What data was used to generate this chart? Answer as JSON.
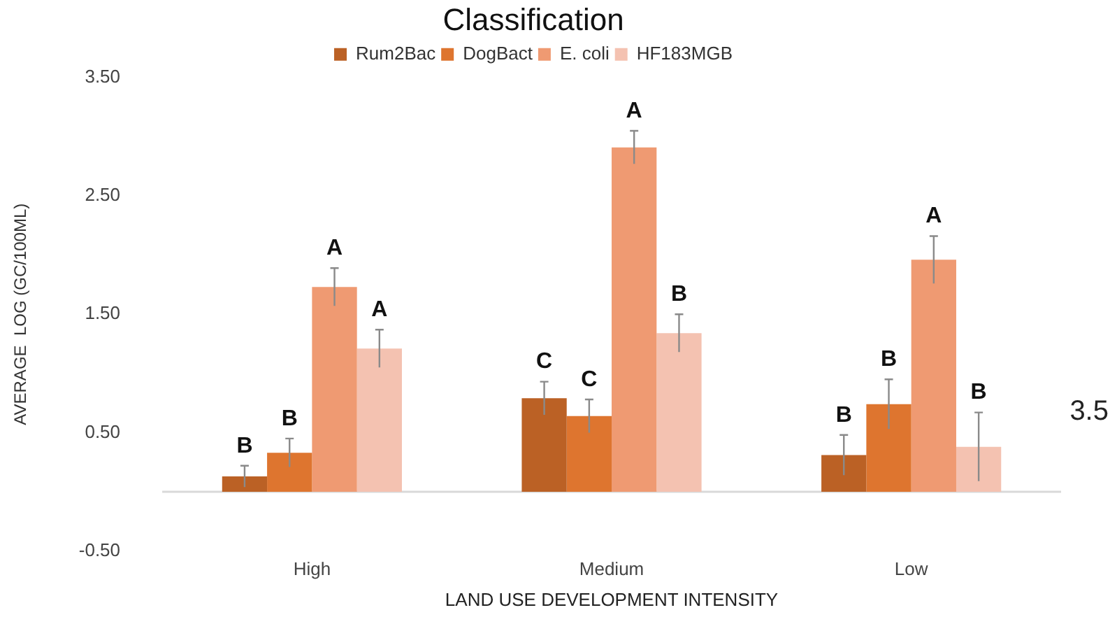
{
  "chart_data": {
    "type": "bar",
    "title": "Classification",
    "xlabel": "LAND USE DEVELOPMENT INTENSITY",
    "ylabel": "AVERAGE  LOG (GC/100ML)",
    "categories": [
      "High",
      "Medium",
      "Low"
    ],
    "series": [
      {
        "name": "Rum2Bac",
        "color": "#bb6125",
        "values": [
          0.13,
          0.79,
          0.31
        ],
        "errors": [
          0.09,
          0.14,
          0.17
        ],
        "value_labels": [
          "B",
          "C",
          "B"
        ]
      },
      {
        "name": "DogBact",
        "color": "#de752f",
        "values": [
          0.33,
          0.64,
          0.74
        ],
        "errors": [
          0.12,
          0.14,
          0.21
        ],
        "value_labels": [
          "B",
          "C",
          "B"
        ]
      },
      {
        "name": "E. coli",
        "color": "#ef9a72",
        "values": [
          1.73,
          2.91,
          1.96
        ],
        "errors": [
          0.16,
          0.14,
          0.2
        ],
        "value_labels": [
          "A",
          "A",
          "A"
        ]
      },
      {
        "name": "HF183MGB",
        "color": "#f4c2b1",
        "values": [
          1.21,
          1.34,
          0.38
        ],
        "errors": [
          0.16,
          0.16,
          0.29
        ],
        "value_labels": [
          "A",
          "B",
          "B"
        ]
      }
    ],
    "ylim": [
      -0.5,
      3.5
    ],
    "yticks": [
      {
        "value": -0.5,
        "label": "-0.50"
      },
      {
        "value": 0.5,
        "label": "0.50"
      },
      {
        "value": 1.5,
        "label": "1.50"
      },
      {
        "value": 2.5,
        "label": "2.50"
      },
      {
        "value": 3.5,
        "label": "3.50"
      }
    ],
    "grid": false,
    "legend": "top",
    "annotations": [
      "3.5"
    ]
  }
}
